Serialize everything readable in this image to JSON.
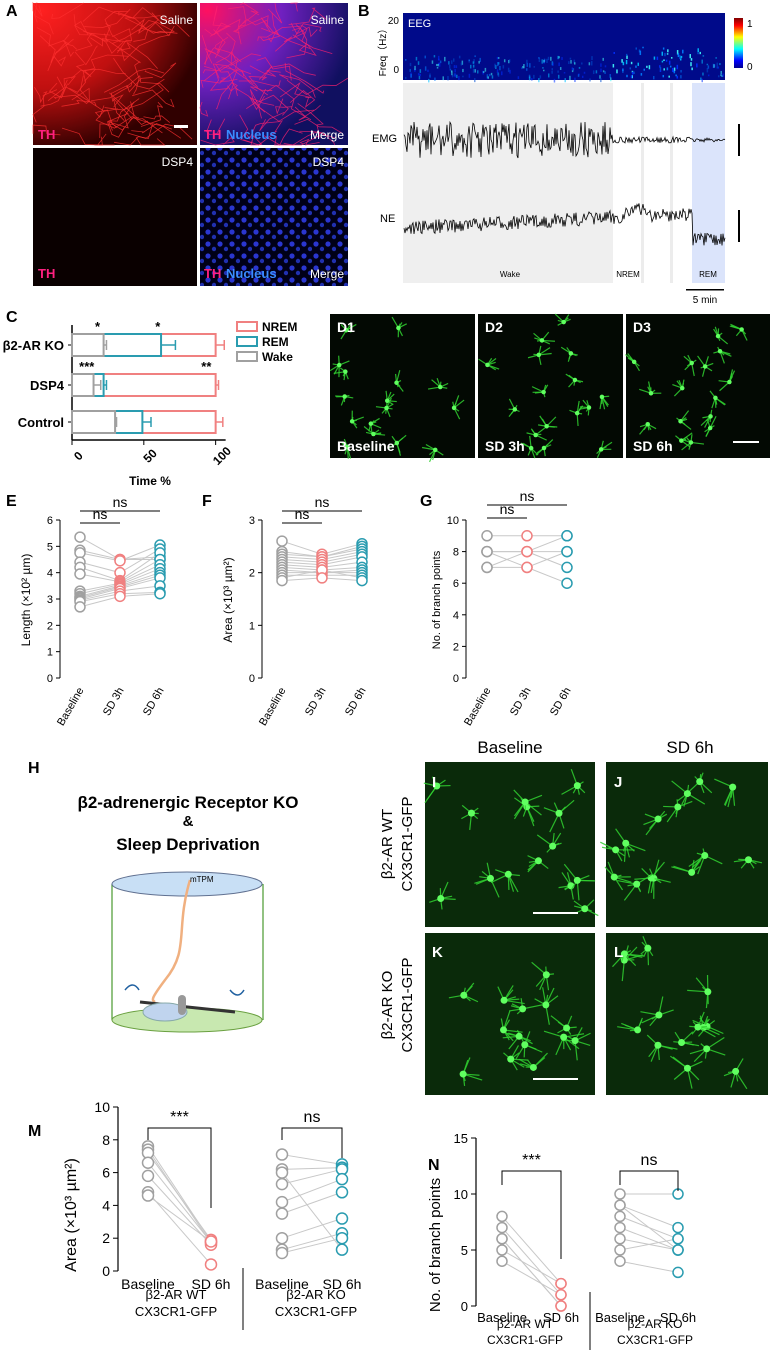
{
  "panels": {
    "A": {
      "letter": "A",
      "saline": "Saline",
      "dsp4": "DSP4",
      "th": "TH",
      "nucleus": "Nucleus",
      "merge": "Merge"
    },
    "B": {
      "letter": "B",
      "eeg": "EEG",
      "freq_label": "Freq（Hz）",
      "freq_top": "20",
      "freq_bottom": "0",
      "cbar_top": "1",
      "cbar_bottom": "0",
      "emg": "EMG",
      "ne": "NE",
      "wake": "Wake",
      "nrem": "NREM",
      "rem": "REM",
      "scale": "5 min"
    },
    "C": {
      "letter": "C",
      "xlabel": "Time %"
    },
    "D": {
      "d1": "D1",
      "d2": "D2",
      "d3": "D3",
      "baseline": "Baseline",
      "sd3": "SD 3h",
      "sd6": "SD 6h"
    },
    "E": {
      "letter": "E",
      "ylabel": "Length (×10² µm)"
    },
    "F": {
      "letter": "F",
      "ylabel": "Area (×10³ µm²)"
    },
    "G": {
      "letter": "G",
      "ylabel": "No. of branch points"
    },
    "H": {
      "letter": "H",
      "title1": "β2-adrenergic Receptor KO",
      "title2": "&",
      "title3": "Sleep  Deprivation",
      "mtpm": "mTPM"
    },
    "IJKL": {
      "i": "I",
      "j": "J",
      "k": "K",
      "l": "L",
      "baseline": "Baseline",
      "sd6": "SD 6h",
      "row1": "β2-AR WT",
      "row1b": "CX3CR1-GFP",
      "row2": "β2-AR KO",
      "row2b": "CX3CR1-GFP"
    },
    "M": {
      "letter": "M",
      "ylabel": "Area (×10³ µm²)"
    },
    "N": {
      "letter": "N",
      "ylabel": "No. of branch points"
    },
    "groups": {
      "wt1": "β2-AR WT",
      "wt2": "CX3CR1-GFP",
      "ko1": "β2-AR KO",
      "ko2": "CX3CR1-GFP"
    }
  },
  "colors": {
    "baseline": "#a0a0a0",
    "sd3": "#f08080",
    "sd6": "#2a9cb0",
    "nrem": "#f08080",
    "rem": "#2a9cb0",
    "wake": "#a0a0a0",
    "th": "#ff2020",
    "nucleus": "#3050ff",
    "gfp": "#30d030"
  },
  "chart_data": [
    {
      "id": "C",
      "type": "bar",
      "orientation": "horizontal",
      "categories": [
        "β2-AR KO",
        "DSP4",
        "Control"
      ],
      "series": [
        {
          "name": "NREM",
          "values": [
            100,
            100,
            100
          ],
          "err": [
            6,
            2,
            5
          ]
        },
        {
          "name": "REM",
          "values": [
            62,
            22,
            49
          ],
          "err": [
            10,
            2,
            6
          ]
        },
        {
          "name": "Wake",
          "values": [
            22,
            15,
            30
          ],
          "err": [
            2,
            5,
            1
          ]
        }
      ],
      "xticks": [
        "0",
        "50",
        "100"
      ],
      "xlim": [
        0,
        110
      ],
      "xlabel": "Time %",
      "annotations": [
        {
          "text": "*",
          "cat": 0,
          "x": 16
        },
        {
          "text": "*",
          "cat": 0,
          "x": 58
        },
        {
          "text": "***",
          "cat": 1,
          "x": 5
        },
        {
          "text": "**",
          "cat": 1,
          "x": 90
        }
      ],
      "legend": "top-right"
    },
    {
      "id": "E",
      "type": "scatter",
      "categories": [
        "Baseline",
        "SD 3h",
        "SD 6h"
      ],
      "ylim": [
        0,
        6
      ],
      "yticks": [
        "0",
        "1",
        "2",
        "3",
        "4",
        "5",
        "6"
      ],
      "ylabel": "Length (×10² µm)",
      "values": [
        [
          5.35,
          4.5,
          4.5
        ],
        [
          4.85,
          4.5,
          4.6
        ],
        [
          4.75,
          4.45,
          5.05
        ],
        [
          4.4,
          4.0,
          4.9
        ],
        [
          4.2,
          3.7,
          4.75
        ],
        [
          3.95,
          3.65,
          4.5
        ],
        [
          3.3,
          3.6,
          4.3
        ],
        [
          3.2,
          3.55,
          4.15
        ],
        [
          3.1,
          3.5,
          4.0
        ],
        [
          3.05,
          3.45,
          3.9
        ],
        [
          3.0,
          3.4,
          3.8
        ],
        [
          2.95,
          3.3,
          3.5
        ],
        [
          2.9,
          3.2,
          3.25
        ],
        [
          2.7,
          3.1,
          3.2
        ]
      ],
      "comparisons": [
        {
          "from": 0,
          "to": 1,
          "label": "ns"
        },
        {
          "from": 0,
          "to": 2,
          "label": "ns"
        }
      ]
    },
    {
      "id": "F",
      "type": "scatter",
      "categories": [
        "Baseline",
        "SD 3h",
        "SD 6h"
      ],
      "ylim": [
        0,
        3
      ],
      "yticks": [
        "0",
        "1",
        "2",
        "3"
      ],
      "ylabel": "Area (×10³ µm²)",
      "values": [
        [
          2.6,
          2.35,
          2.55
        ],
        [
          2.4,
          2.3,
          2.5
        ],
        [
          2.35,
          2.3,
          2.45
        ],
        [
          2.3,
          2.25,
          2.4
        ],
        [
          2.25,
          2.2,
          2.35
        ],
        [
          2.2,
          2.15,
          2.3
        ],
        [
          2.15,
          2.1,
          2.2
        ],
        [
          2.1,
          2.05,
          2.1
        ],
        [
          2.05,
          2.0,
          2.05
        ],
        [
          2.0,
          2.0,
          2.0
        ],
        [
          1.95,
          1.95,
          1.95
        ],
        [
          1.9,
          2.05,
          1.9
        ],
        [
          1.85,
          1.9,
          1.85
        ]
      ],
      "comparisons": [
        {
          "from": 0,
          "to": 1,
          "label": "ns"
        },
        {
          "from": 0,
          "to": 2,
          "label": "ns"
        }
      ]
    },
    {
      "id": "G",
      "type": "scatter",
      "categories": [
        "Baseline",
        "SD 3h",
        "SD 6h"
      ],
      "ylim": [
        0,
        10
      ],
      "yticks": [
        "0",
        "2",
        "4",
        "6",
        "8",
        "10"
      ],
      "ylabel": "No. of branch points",
      "values": [
        [
          9,
          9,
          9
        ],
        [
          8,
          8,
          9
        ],
        [
          8,
          8,
          8
        ],
        [
          7,
          7,
          8
        ],
        [
          7,
          8,
          7
        ],
        [
          8,
          7,
          6
        ]
      ],
      "comparisons": [
        {
          "from": 0,
          "to": 1,
          "label": "ns"
        },
        {
          "from": 0,
          "to": 2,
          "label": "ns"
        }
      ]
    },
    {
      "id": "M",
      "type": "scatter",
      "categories": [
        "Baseline",
        "SD 6h",
        "Baseline",
        "SD 6h"
      ],
      "ylim": [
        0,
        10
      ],
      "yticks": [
        "0",
        "2",
        "4",
        "6",
        "8",
        "10"
      ],
      "ylabel": "Area (×10³ µm²)",
      "groups": [
        "β2-AR WT CX3CR1-GFP",
        "β2-AR KO CX3CR1-GFP"
      ],
      "wt": [
        [
          7.6,
          1.8
        ],
        [
          7.4,
          1.7
        ],
        [
          7.2,
          1.9
        ],
        [
          6.6,
          1.75
        ],
        [
          5.8,
          1.6
        ],
        [
          4.8,
          0.4
        ],
        [
          4.6,
          1.8
        ]
      ],
      "ko": [
        [
          7.1,
          6.5
        ],
        [
          6.2,
          6.3
        ],
        [
          5.3,
          6.2
        ],
        [
          4.2,
          5.6
        ],
        [
          3.5,
          4.8
        ],
        [
          2.0,
          3.2
        ],
        [
          1.3,
          2.3
        ],
        [
          1.1,
          2.0
        ],
        [
          6.0,
          1.3
        ]
      ],
      "comparisons": [
        {
          "label": "***"
        },
        {
          "label": "ns"
        }
      ]
    },
    {
      "id": "N",
      "type": "scatter",
      "categories": [
        "Baseline",
        "SD 6h",
        "Baseline",
        "SD 6h"
      ],
      "ylim": [
        0,
        15
      ],
      "yticks": [
        "0",
        "5",
        "10",
        "15"
      ],
      "ylabel": "No. of branch points",
      "groups": [
        "β2-AR WT CX3CR1-GFP",
        "β2-AR KO CX3CR1-GFP"
      ],
      "wt": [
        [
          8,
          2
        ],
        [
          7,
          1
        ],
        [
          6,
          0
        ],
        [
          5,
          2
        ],
        [
          4,
          1
        ],
        [
          6,
          0
        ]
      ],
      "ko": [
        [
          10,
          10
        ],
        [
          9,
          7
        ],
        [
          8,
          6
        ],
        [
          7,
          5
        ],
        [
          6,
          5
        ],
        [
          5,
          6
        ],
        [
          4,
          3
        ],
        [
          9,
          5
        ]
      ],
      "comparisons": [
        {
          "label": "***"
        },
        {
          "label": "ns"
        }
      ]
    }
  ]
}
